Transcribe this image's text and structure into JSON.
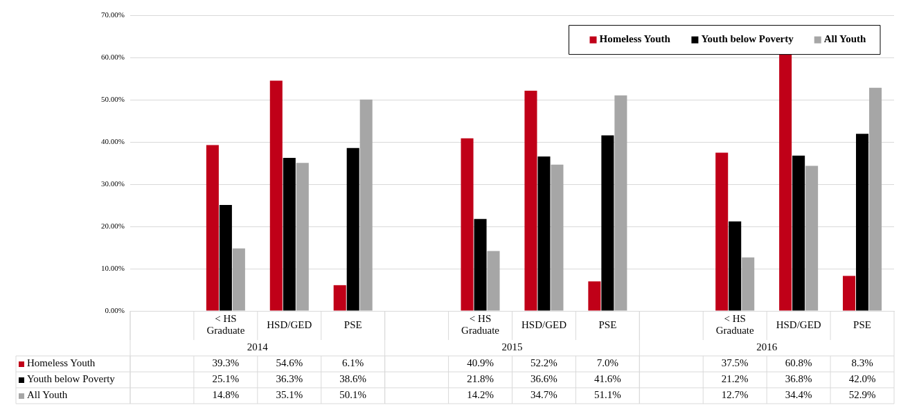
{
  "chart_data": {
    "type": "bar",
    "categories": [
      null,
      "< HS Graduate",
      "HSD/GED",
      "PSE",
      null,
      "< HS Graduate",
      "HSD/GED",
      "PSE",
      null,
      "< HS Graduate",
      "HSD/GED",
      "PSE"
    ],
    "series": [
      {
        "name": "Homeless Youth",
        "color": "#c00018",
        "values": [
          null,
          39.3,
          54.6,
          6.1,
          null,
          40.9,
          52.2,
          7.0,
          null,
          37.5,
          60.8,
          8.3
        ],
        "value_labels": [
          null,
          "39.3%",
          "54.6%",
          "6.1%",
          null,
          "40.9%",
          "52.2%",
          "7.0%",
          null,
          "37.5%",
          "60.8%",
          "8.3%"
        ]
      },
      {
        "name": "Youth below Poverty",
        "color": "#000000",
        "values": [
          null,
          25.1,
          36.3,
          38.6,
          null,
          21.8,
          36.6,
          41.6,
          null,
          21.2,
          36.8,
          42.0
        ],
        "value_labels": [
          null,
          "25.1%",
          "36.3%",
          "38.6%",
          null,
          "21.8%",
          "36.6%",
          "41.6%",
          null,
          "21.2%",
          "36.8%",
          "42.0%"
        ]
      },
      {
        "name": "All Youth",
        "color": "#a6a6a6",
        "values": [
          null,
          14.8,
          35.1,
          50.1,
          null,
          14.2,
          34.7,
          51.1,
          null,
          12.7,
          34.4,
          52.9
        ],
        "value_labels": [
          null,
          "14.8%",
          "35.1%",
          "50.1%",
          null,
          "14.2%",
          "34.7%",
          "51.1%",
          null,
          "12.7%",
          "34.4%",
          "52.9%"
        ]
      }
    ],
    "annotations": [
      "2014",
      "2015",
      "2016"
    ],
    "ylim": [
      0,
      70
    ],
    "yticks": [
      {
        "value": 0,
        "label": "0.00%"
      },
      {
        "value": 10,
        "label": "10.00%"
      },
      {
        "value": 20,
        "label": "20.00%"
      },
      {
        "value": 30,
        "label": "30.00%"
      },
      {
        "value": 40,
        "label": "40.00%"
      },
      {
        "value": 50,
        "label": "50.00%"
      },
      {
        "value": 60,
        "label": "60.00%"
      },
      {
        "value": 70,
        "label": "70.00%"
      }
    ],
    "grid": "y",
    "legend": "top right"
  }
}
